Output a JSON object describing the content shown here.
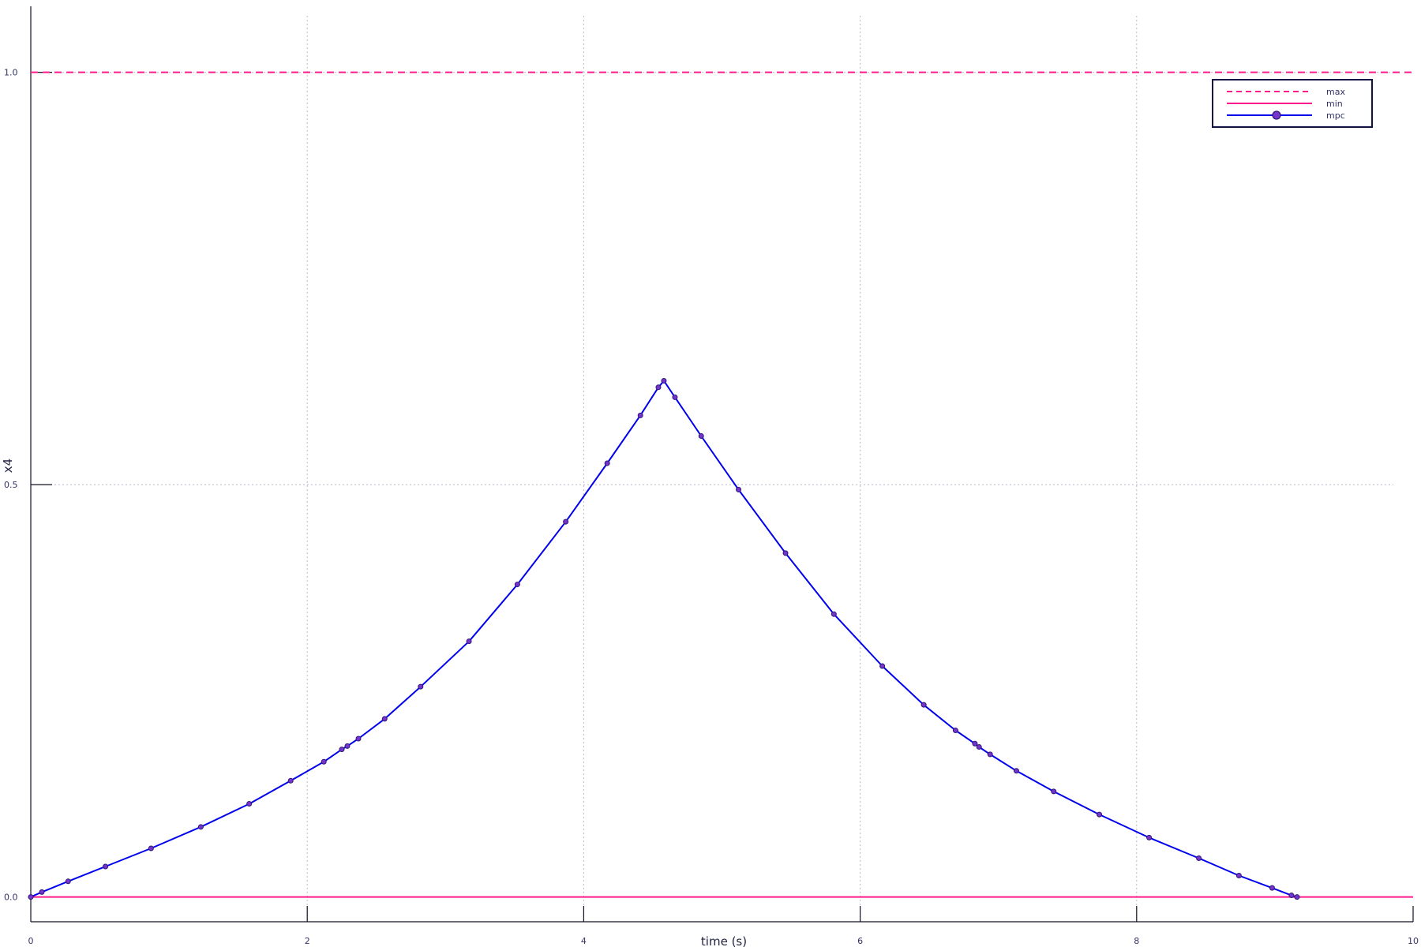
{
  "chart_data": {
    "type": "line",
    "xlabel": "time (s)",
    "ylabel": "x4",
    "xlim": [
      0,
      10
    ],
    "ylim": [
      -0.03,
      1.08
    ],
    "xticks": [
      0,
      2,
      4,
      6,
      8,
      10
    ],
    "xtick_labels": [
      "0",
      "2",
      "4",
      "6",
      "8",
      "10"
    ],
    "yticks": [
      0.0,
      0.5,
      1.0
    ],
    "ytick_labels": [
      "0.0",
      "0.5",
      "1.0"
    ],
    "grid": true,
    "legend_position": "top-right",
    "colors": {
      "max": "#ff1a8c",
      "min": "#ff1a8c",
      "mpc": "#0000ee",
      "marker_fill": "#7733cc"
    },
    "series": [
      {
        "name": "max",
        "style": "dashed",
        "x": [
          0,
          10
        ],
        "y": [
          1.0,
          1.0
        ]
      },
      {
        "name": "min",
        "style": "solid",
        "x": [
          0,
          10
        ],
        "y": [
          0.0,
          0.0
        ]
      },
      {
        "name": "mpc",
        "style": "solid-markers",
        "x": [
          0,
          0.08,
          0.27,
          0.54,
          0.87,
          1.23,
          1.58,
          1.88,
          2.12,
          2.25,
          2.29,
          2.37,
          2.56,
          2.82,
          3.17,
          3.52,
          3.87,
          4.17,
          4.41,
          4.54,
          4.58,
          4.66,
          4.85,
          5.12,
          5.46,
          5.81,
          6.16,
          6.46,
          6.69,
          6.83,
          6.86,
          6.94,
          7.13,
          7.4,
          7.73,
          8.09,
          8.45,
          8.74,
          8.98,
          9.12,
          9.16
        ],
        "y": [
          0.0,
          0.006,
          0.019,
          0.037,
          0.059,
          0.085,
          0.113,
          0.141,
          0.164,
          0.179,
          0.183,
          0.192,
          0.216,
          0.255,
          0.31,
          0.379,
          0.455,
          0.526,
          0.584,
          0.618,
          0.626,
          0.606,
          0.559,
          0.494,
          0.417,
          0.343,
          0.28,
          0.233,
          0.202,
          0.186,
          0.182,
          0.173,
          0.153,
          0.128,
          0.1,
          0.072,
          0.047,
          0.026,
          0.011,
          0.002,
          0.0
        ]
      }
    ]
  }
}
